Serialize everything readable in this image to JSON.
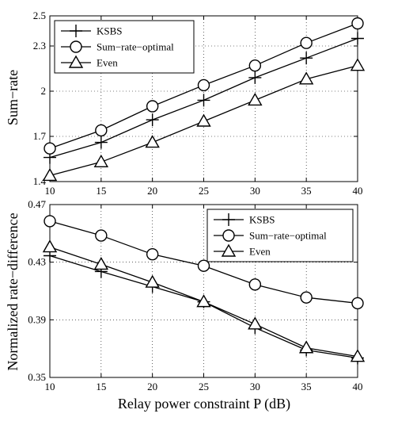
{
  "chart_data": [
    {
      "type": "line",
      "ylabel": "Sum−rate",
      "xlabel": "",
      "x": [
        10,
        15,
        20,
        25,
        30,
        35,
        40
      ],
      "xlim": [
        10,
        40
      ],
      "ylim": [
        1.4,
        2.5
      ],
      "xticks": [
        10,
        15,
        20,
        25,
        30,
        35,
        40
      ],
      "yticks": [
        1.4,
        1.7,
        2,
        2.3,
        2.5
      ],
      "ytick_labels": [
        "1.4",
        "1.7",
        "2",
        "2.3",
        "2.5"
      ],
      "grid": true,
      "legend": "top-left",
      "series": [
        {
          "name": "KSBS",
          "marker": "plus",
          "values": [
            1.56,
            1.66,
            1.81,
            1.94,
            2.09,
            2.22,
            2.35
          ]
        },
        {
          "name": "Sum−rate−optimal",
          "marker": "circle",
          "values": [
            1.62,
            1.74,
            1.9,
            2.04,
            2.17,
            2.32,
            2.45
          ]
        },
        {
          "name": "Even",
          "marker": "triangle",
          "values": [
            1.44,
            1.53,
            1.66,
            1.8,
            1.94,
            2.08,
            2.17
          ]
        }
      ]
    },
    {
      "type": "line",
      "ylabel": "Normalized rate−difference",
      "xlabel": "Relay power constraint P (dB)",
      "x": [
        10,
        15,
        20,
        25,
        30,
        35,
        40
      ],
      "xlim": [
        10,
        40
      ],
      "ylim": [
        0.35,
        0.47
      ],
      "xticks": [
        10,
        15,
        20,
        25,
        30,
        35,
        40
      ],
      "yticks": [
        0.35,
        0.39,
        0.43,
        0.47
      ],
      "ytick_labels": [
        "0.35",
        "0.39",
        "0.43",
        "0.47"
      ],
      "grid": true,
      "legend": "top-right",
      "series": [
        {
          "name": "KSBS",
          "marker": "plus",
          "values": [
            0.4345,
            0.4235,
            0.413,
            0.4025,
            0.3845,
            0.369,
            0.3635
          ]
        },
        {
          "name": "Sum−rate−optimal",
          "marker": "circle",
          "values": [
            0.4585,
            0.4485,
            0.4355,
            0.4275,
            0.4145,
            0.4055,
            0.4015
          ]
        },
        {
          "name": "Even",
          "marker": "triangle",
          "values": [
            0.4405,
            0.4285,
            0.416,
            0.4025,
            0.387,
            0.3705,
            0.3645
          ]
        }
      ]
    }
  ]
}
